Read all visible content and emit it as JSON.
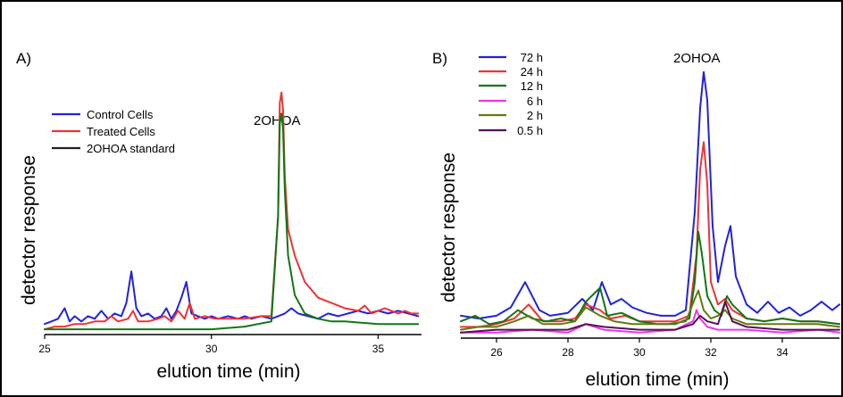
{
  "figure": {
    "border_color": "#000000"
  },
  "chart_data": [
    {
      "type": "line",
      "panel_label": "A)",
      "annotation": "2OHOA",
      "xlabel": "elution time (min)",
      "ylabel": "detector response",
      "xlim": [
        25,
        36.3
      ],
      "ylim": [
        0,
        1.0
      ],
      "xticks": [
        25,
        30,
        35
      ],
      "grid": false,
      "legend_position": "top-left",
      "series": [
        {
          "name": "Control Cells",
          "color": "#2222dd",
          "x": [
            25.0,
            25.2,
            25.4,
            25.6,
            25.75,
            25.9,
            26.1,
            26.3,
            26.5,
            26.7,
            26.9,
            27.1,
            27.3,
            27.45,
            27.6,
            27.75,
            27.9,
            28.1,
            28.3,
            28.5,
            28.65,
            28.8,
            28.95,
            29.1,
            29.25,
            29.4,
            29.6,
            29.8,
            30.0,
            30.2,
            30.5,
            30.8,
            31.0,
            31.2,
            31.5,
            31.8,
            32.0,
            32.2,
            32.4,
            32.6,
            32.9,
            33.2,
            33.5,
            33.8,
            34.1,
            34.4,
            34.7,
            35.0,
            35.3,
            35.6,
            35.9,
            36.2
          ],
          "y": [
            0.04,
            0.05,
            0.06,
            0.1,
            0.05,
            0.07,
            0.05,
            0.07,
            0.06,
            0.09,
            0.06,
            0.08,
            0.07,
            0.12,
            0.24,
            0.1,
            0.07,
            0.08,
            0.06,
            0.07,
            0.1,
            0.06,
            0.09,
            0.14,
            0.2,
            0.08,
            0.07,
            0.06,
            0.07,
            0.06,
            0.07,
            0.06,
            0.07,
            0.06,
            0.07,
            0.06,
            0.07,
            0.08,
            0.1,
            0.08,
            0.07,
            0.06,
            0.08,
            0.07,
            0.08,
            0.09,
            0.08,
            0.09,
            0.08,
            0.09,
            0.08,
            0.07
          ]
        },
        {
          "name": "Treated Cells",
          "color": "#ee3333",
          "x": [
            25.0,
            25.3,
            25.6,
            25.9,
            26.2,
            26.5,
            26.8,
            27.0,
            27.2,
            27.5,
            27.65,
            27.8,
            28.1,
            28.4,
            28.6,
            28.8,
            29.0,
            29.2,
            29.35,
            29.5,
            29.8,
            30.1,
            30.5,
            31.0,
            31.5,
            31.8,
            32.0,
            32.05,
            32.1,
            32.15,
            32.2,
            32.3,
            32.5,
            32.8,
            33.2,
            33.6,
            34.0,
            34.4,
            34.6,
            34.8,
            35.0,
            35.2,
            35.4,
            35.6,
            35.8,
            36.0,
            36.2
          ],
          "y": [
            0.02,
            0.03,
            0.03,
            0.04,
            0.04,
            0.05,
            0.05,
            0.07,
            0.05,
            0.06,
            0.09,
            0.05,
            0.05,
            0.06,
            0.07,
            0.05,
            0.09,
            0.06,
            0.12,
            0.06,
            0.07,
            0.06,
            0.06,
            0.06,
            0.07,
            0.07,
            0.45,
            0.88,
            0.92,
            0.85,
            0.6,
            0.4,
            0.3,
            0.2,
            0.14,
            0.12,
            0.1,
            0.09,
            0.11,
            0.08,
            0.09,
            0.1,
            0.09,
            0.08,
            0.09,
            0.08,
            0.08
          ]
        },
        {
          "name": "2OHOA standard",
          "color": "#117711",
          "x": [
            25.0,
            26.0,
            27.0,
            28.0,
            29.0,
            30.0,
            31.0,
            31.8,
            32.0,
            32.05,
            32.1,
            32.15,
            32.2,
            32.3,
            32.5,
            32.8,
            33.2,
            33.6,
            34.0,
            35.0,
            36.2
          ],
          "y": [
            0.02,
            0.02,
            0.02,
            0.02,
            0.02,
            0.02,
            0.03,
            0.05,
            0.45,
            0.8,
            0.84,
            0.78,
            0.55,
            0.3,
            0.15,
            0.08,
            0.06,
            0.05,
            0.05,
            0.04,
            0.04
          ]
        }
      ]
    },
    {
      "type": "line",
      "panel_label": "B)",
      "annotation": "2OHOA",
      "xlabel": "elution time (min)",
      "ylabel": "detector response",
      "xlim": [
        25,
        35.6
      ],
      "ylim": [
        0,
        1.0
      ],
      "xticks": [
        26,
        28,
        30,
        32,
        34
      ],
      "grid": false,
      "legend_position": "top-left",
      "series": [
        {
          "name": "72 h",
          "color": "#2222dd",
          "x": [
            25.0,
            25.5,
            26.0,
            26.4,
            26.8,
            27.2,
            27.5,
            28.0,
            28.4,
            28.7,
            28.95,
            29.2,
            29.5,
            29.8,
            30.2,
            30.6,
            31.0,
            31.3,
            31.55,
            31.7,
            31.8,
            31.9,
            32.05,
            32.2,
            32.4,
            32.55,
            32.7,
            33.0,
            33.3,
            33.6,
            33.9,
            34.2,
            34.5,
            34.8,
            35.1,
            35.4,
            35.6
          ],
          "y": [
            0.08,
            0.07,
            0.08,
            0.11,
            0.2,
            0.1,
            0.08,
            0.09,
            0.14,
            0.1,
            0.2,
            0.12,
            0.14,
            0.11,
            0.09,
            0.08,
            0.08,
            0.1,
            0.45,
            0.82,
            0.95,
            0.85,
            0.4,
            0.2,
            0.33,
            0.4,
            0.22,
            0.12,
            0.09,
            0.13,
            0.09,
            0.11,
            0.08,
            0.1,
            0.13,
            0.1,
            0.12
          ]
        },
        {
          "name": "24 h",
          "color": "#ee3333",
          "x": [
            25.0,
            25.5,
            26.0,
            26.5,
            26.9,
            27.3,
            27.8,
            28.2,
            28.5,
            28.9,
            29.2,
            29.6,
            30.0,
            30.5,
            31.0,
            31.4,
            31.6,
            31.7,
            31.8,
            31.9,
            32.0,
            32.2,
            32.4,
            32.6,
            33.0,
            33.5,
            34.0,
            34.5,
            35.0,
            35.6
          ],
          "y": [
            0.04,
            0.04,
            0.05,
            0.07,
            0.12,
            0.06,
            0.06,
            0.07,
            0.12,
            0.1,
            0.07,
            0.08,
            0.06,
            0.06,
            0.06,
            0.08,
            0.3,
            0.6,
            0.7,
            0.55,
            0.2,
            0.12,
            0.14,
            0.1,
            0.07,
            0.06,
            0.07,
            0.06,
            0.06,
            0.05
          ]
        },
        {
          "name": "12 h",
          "color": "#117711",
          "x": [
            25.0,
            25.4,
            25.8,
            26.2,
            26.6,
            27.0,
            27.4,
            27.8,
            28.2,
            28.5,
            28.9,
            29.1,
            29.5,
            30.0,
            30.5,
            31.0,
            31.4,
            31.55,
            31.65,
            31.75,
            31.9,
            32.1,
            32.3,
            32.45,
            32.6,
            33.0,
            33.5,
            34.0,
            34.5,
            35.0,
            35.6
          ],
          "y": [
            0.06,
            0.08,
            0.05,
            0.06,
            0.1,
            0.07,
            0.06,
            0.07,
            0.06,
            0.13,
            0.18,
            0.08,
            0.09,
            0.06,
            0.05,
            0.05,
            0.07,
            0.2,
            0.38,
            0.3,
            0.15,
            0.1,
            0.08,
            0.15,
            0.12,
            0.07,
            0.06,
            0.07,
            0.06,
            0.06,
            0.05
          ]
        },
        {
          "name": "6 h",
          "color": "#ee33ee",
          "x": [
            25.0,
            26.0,
            27.0,
            28.0,
            28.5,
            29.0,
            30.0,
            31.0,
            31.5,
            31.6,
            31.7,
            31.9,
            32.2,
            33.0,
            34.0,
            35.0,
            35.6
          ],
          "y": [
            0.02,
            0.02,
            0.03,
            0.02,
            0.05,
            0.03,
            0.02,
            0.03,
            0.06,
            0.1,
            0.07,
            0.04,
            0.03,
            0.03,
            0.02,
            0.03,
            0.02
          ]
        },
        {
          "name": "2 h",
          "color": "#667711",
          "x": [
            25.0,
            25.5,
            26.0,
            26.5,
            26.9,
            27.3,
            27.8,
            28.2,
            28.5,
            28.9,
            29.3,
            29.8,
            30.3,
            30.8,
            31.3,
            31.55,
            31.65,
            31.8,
            32.0,
            32.2,
            32.4,
            32.6,
            33.0,
            33.5,
            34.0,
            34.5,
            35.0,
            35.6
          ],
          "y": [
            0.03,
            0.04,
            0.04,
            0.06,
            0.08,
            0.05,
            0.05,
            0.06,
            0.11,
            0.08,
            0.06,
            0.05,
            0.05,
            0.05,
            0.06,
            0.14,
            0.17,
            0.1,
            0.07,
            0.08,
            0.1,
            0.07,
            0.05,
            0.05,
            0.05,
            0.05,
            0.05,
            0.04
          ]
        },
        {
          "name": "0.5 h",
          "color": "#551155",
          "x": [
            25.0,
            26.0,
            27.0,
            28.0,
            28.5,
            29.0,
            30.0,
            31.0,
            31.5,
            31.7,
            31.9,
            32.2,
            32.4,
            32.6,
            33.0,
            34.0,
            35.0,
            35.6
          ],
          "y": [
            0.02,
            0.03,
            0.03,
            0.03,
            0.05,
            0.04,
            0.03,
            0.03,
            0.05,
            0.08,
            0.06,
            0.05,
            0.13,
            0.06,
            0.04,
            0.03,
            0.03,
            0.03
          ]
        }
      ]
    }
  ]
}
